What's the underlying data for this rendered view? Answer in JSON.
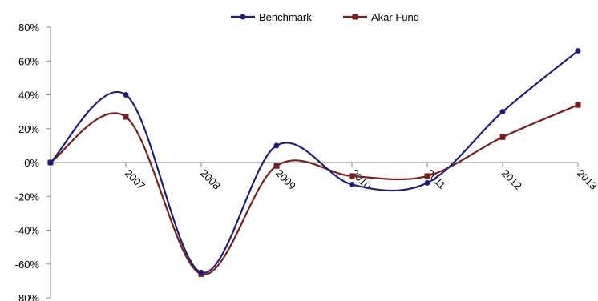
{
  "chart_data": {
    "type": "line",
    "title": "",
    "xlabel": "",
    "ylabel": "",
    "categories": [
      "",
      "2007",
      "2008",
      "2009",
      "2010",
      "2011",
      "2012",
      "2013"
    ],
    "ylim": [
      -0.8,
      0.8
    ],
    "yticks": [
      {
        "value": 0.8,
        "label": "80%"
      },
      {
        "value": 0.6,
        "label": "60%"
      },
      {
        "value": 0.4,
        "label": "40%"
      },
      {
        "value": 0.2,
        "label": "20%"
      },
      {
        "value": 0.0,
        "label": "0%"
      },
      {
        "value": -0.2,
        "label": "-20%"
      },
      {
        "value": -0.4,
        "label": "-40%"
      },
      {
        "value": -0.6,
        "label": "-60%"
      },
      {
        "value": -0.8,
        "label": "-80%"
      }
    ],
    "grid": false,
    "legend_position": "top-center",
    "series": [
      {
        "name": "Benchmark",
        "color": "#1f1f7a",
        "marker": "circle",
        "values": [
          0.0,
          0.4,
          -0.65,
          0.1,
          -0.13,
          -0.12,
          0.3,
          0.66
        ]
      },
      {
        "name": "Akar Fund",
        "color": "#7a1f1f",
        "marker": "square",
        "values": [
          0.0,
          0.27,
          -0.66,
          -0.02,
          -0.08,
          -0.08,
          0.15,
          0.34
        ]
      }
    ]
  }
}
